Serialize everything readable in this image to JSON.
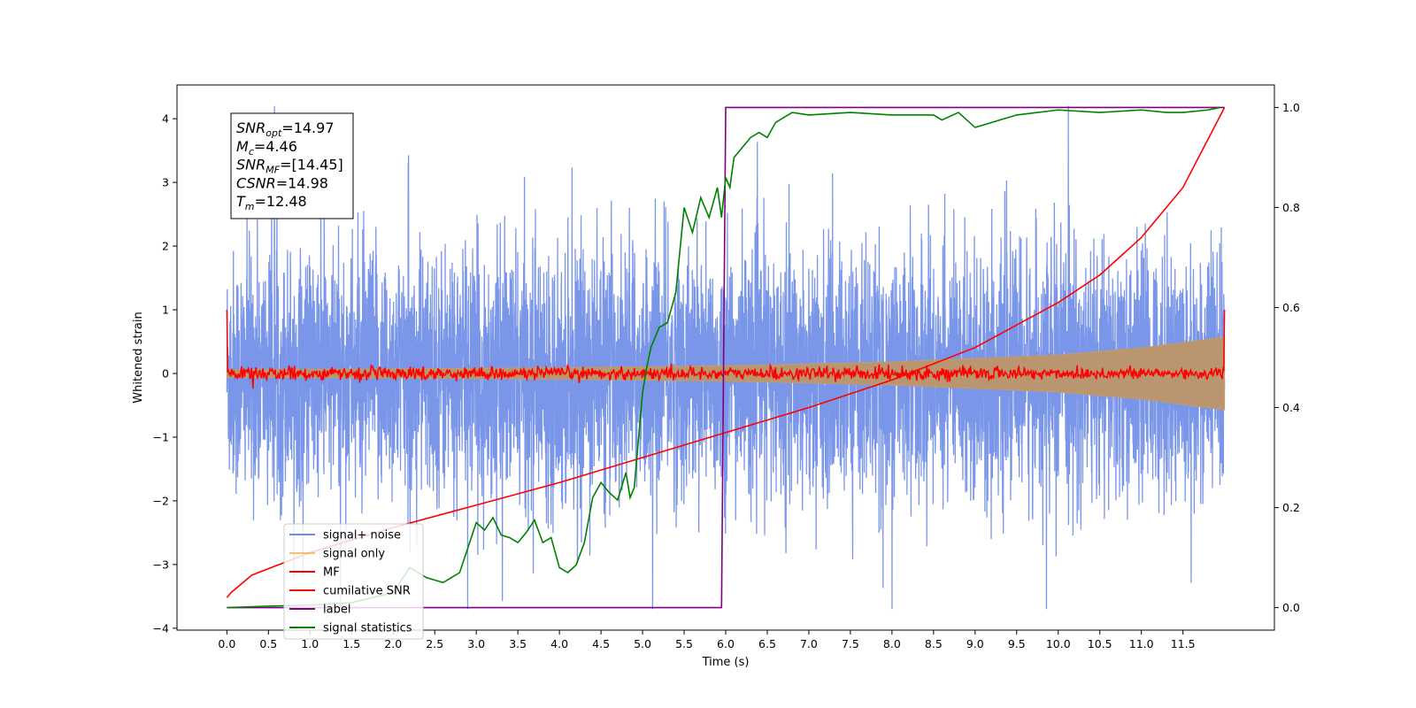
{
  "chart_data": {
    "type": "line",
    "xlabel": "Time (s)",
    "ylabel": "Whitened strain",
    "xlim": [
      -0.6,
      12.6
    ],
    "ylim": [
      -4.03,
      4.53
    ],
    "y2lim": [
      -0.045,
      1.045
    ],
    "x_ticks": [
      "0.0",
      "0.5",
      "1.0",
      "1.5",
      "2.0",
      "2.5",
      "3.0",
      "3.5",
      "4.0",
      "4.5",
      "5.0",
      "5.5",
      "6.0",
      "6.5",
      "7.0",
      "7.5",
      "8.0",
      "8.5",
      "9.0",
      "9.5",
      "10.0",
      "10.5",
      "11.0",
      "11.5"
    ],
    "y_ticks": [
      "4",
      "3",
      "2",
      "1",
      "0",
      "−1",
      "−2",
      "−3",
      "−4"
    ],
    "y2_ticks": [
      "1.0",
      "0.8",
      "0.6",
      "0.4",
      "0.2",
      "0.0"
    ],
    "annotation": [
      {
        "sym": "SNR",
        "sub": "opt",
        "val": "=14.97"
      },
      {
        "sym": "M",
        "sub": "c",
        "val": "=4.46"
      },
      {
        "sym": "SNR",
        "sub": "MF",
        "val": "=[14.45]"
      },
      {
        "sym": "CSNR",
        "sub": "",
        "val": "=14.98"
      },
      {
        "sym": "T",
        "sub": "m",
        "val": "=12.48"
      }
    ],
    "legend_position": "lower-left",
    "series": [
      {
        "name": "signal+ noise",
        "color": "#6b8be6",
        "axis": "left",
        "kind": "noise",
        "typical_amplitude": 1.1,
        "peak_range": [
          -3.7,
          4.2
        ]
      },
      {
        "name": "signal only",
        "color": "#f5a742",
        "axis": "left",
        "kind": "envelope",
        "envelope_x": [
          0,
          2,
          4,
          6,
          8,
          10,
          11,
          12
        ],
        "envelope_y": [
          0.06,
          0.07,
          0.09,
          0.12,
          0.18,
          0.29,
          0.4,
          0.57
        ]
      },
      {
        "name": "MF",
        "color": "#ff0000",
        "axis": "left",
        "kind": "noise",
        "typical_amplitude": 0.05,
        "start_value": 1.0,
        "end_value": 1.0
      },
      {
        "name": "cumilative SNR",
        "color": "#ff0000",
        "axis": "right",
        "x": [
          0,
          0.05,
          0.3,
          1,
          2,
          3,
          4,
          5,
          6,
          7,
          8,
          9,
          10,
          10.5,
          11,
          11.5,
          12
        ],
        "y": [
          0.02,
          0.03,
          0.065,
          0.11,
          0.16,
          0.205,
          0.25,
          0.3,
          0.35,
          0.4,
          0.455,
          0.52,
          0.61,
          0.665,
          0.74,
          0.84,
          1.0
        ]
      },
      {
        "name": "label",
        "color": "#800080",
        "axis": "right",
        "x": [
          0,
          5.95,
          6.0,
          12
        ],
        "y": [
          0.0,
          0.0,
          1.0,
          1.0
        ]
      },
      {
        "name": "signal statistics",
        "color": "#008000",
        "axis": "right",
        "x": [
          0,
          0.5,
          1.0,
          1.5,
          2.0,
          2.2,
          2.4,
          2.6,
          2.8,
          3.0,
          3.1,
          3.2,
          3.3,
          3.4,
          3.5,
          3.6,
          3.7,
          3.8,
          3.9,
          4.0,
          4.1,
          4.2,
          4.3,
          4.4,
          4.5,
          4.6,
          4.7,
          4.8,
          4.85,
          4.9,
          5.0,
          5.05,
          5.1,
          5.2,
          5.3,
          5.4,
          5.5,
          5.6,
          5.7,
          5.8,
          5.9,
          5.95,
          6.0,
          6.05,
          6.1,
          6.2,
          6.3,
          6.4,
          6.5,
          6.6,
          6.7,
          6.8,
          7.0,
          7.5,
          8.0,
          8.5,
          8.6,
          8.8,
          9.0,
          9.2,
          9.5,
          10.0,
          10.5,
          11.0,
          11.3,
          11.5,
          11.8,
          11.95
        ],
        "y": [
          0.0,
          0.003,
          0.005,
          0.01,
          0.03,
          0.08,
          0.06,
          0.05,
          0.07,
          0.17,
          0.155,
          0.18,
          0.145,
          0.14,
          0.13,
          0.15,
          0.175,
          0.13,
          0.14,
          0.08,
          0.07,
          0.085,
          0.13,
          0.22,
          0.25,
          0.23,
          0.215,
          0.27,
          0.22,
          0.24,
          0.43,
          0.48,
          0.52,
          0.56,
          0.57,
          0.63,
          0.8,
          0.75,
          0.82,
          0.78,
          0.84,
          0.78,
          0.86,
          0.84,
          0.9,
          0.92,
          0.94,
          0.95,
          0.94,
          0.97,
          0.98,
          0.99,
          0.985,
          0.99,
          0.985,
          0.985,
          0.975,
          0.99,
          0.96,
          0.97,
          0.985,
          0.995,
          0.99,
          0.995,
          0.99,
          0.99,
          0.995,
          1.0
        ]
      }
    ]
  }
}
